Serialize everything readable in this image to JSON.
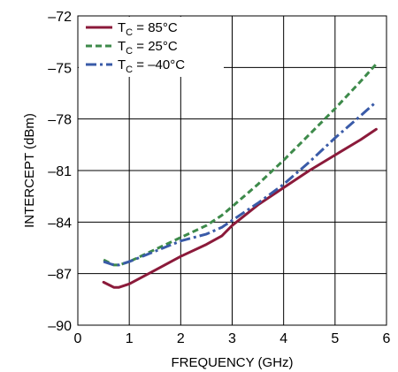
{
  "chart_data": {
    "type": "line",
    "title": "",
    "xlabel": "FREQUENCY (GHz)",
    "ylabel": "INTERCEPT (dBm)",
    "xlim": [
      0,
      6
    ],
    "ylim": [
      -90,
      -72
    ],
    "xticks": [
      "0",
      "1",
      "2",
      "3",
      "4",
      "5",
      "6"
    ],
    "yticks": [
      "–72",
      "–75",
      "–78",
      "–81",
      "–84",
      "–87",
      "–90"
    ],
    "grid": true,
    "legend_position": "top-left",
    "series": [
      {
        "name": "TC = 85°C",
        "color": "#8b1a3a",
        "dash": "solid",
        "x": [
          0.5,
          0.7,
          0.8,
          1.0,
          1.5,
          2.0,
          2.5,
          2.8,
          3.0,
          3.5,
          4.0,
          4.5,
          5.0,
          5.5,
          5.8
        ],
        "y": [
          -87.5,
          -87.8,
          -87.8,
          -87.6,
          -86.8,
          -86.0,
          -85.3,
          -84.8,
          -84.2,
          -83.0,
          -82.0,
          -81.0,
          -80.1,
          -79.2,
          -78.6
        ]
      },
      {
        "name": "TC = 25°C",
        "color": "#3d8a4a",
        "dash": "dashed",
        "x": [
          0.5,
          0.7,
          0.8,
          1.0,
          1.5,
          2.0,
          2.5,
          2.8,
          3.0,
          3.5,
          4.0,
          4.5,
          5.0,
          5.5,
          5.8
        ],
        "y": [
          -86.2,
          -86.5,
          -86.5,
          -86.3,
          -85.6,
          -84.9,
          -84.2,
          -83.6,
          -83.1,
          -81.8,
          -80.4,
          -78.9,
          -77.4,
          -75.8,
          -74.8
        ]
      },
      {
        "name": "TC = –40°C",
        "color": "#3a5ba8",
        "dash": "dashdot",
        "x": [
          0.5,
          0.7,
          0.8,
          1.0,
          1.5,
          2.0,
          2.5,
          2.8,
          3.0,
          3.5,
          4.0,
          4.5,
          5.0,
          5.5,
          5.8
        ],
        "y": [
          -86.3,
          -86.5,
          -86.5,
          -86.3,
          -85.7,
          -85.1,
          -84.7,
          -84.3,
          -83.9,
          -82.9,
          -81.8,
          -80.5,
          -79.1,
          -77.8,
          -77.0
        ]
      }
    ]
  },
  "legend": [
    {
      "t": "T",
      "sub": "C",
      "rest": " = 85°C"
    },
    {
      "t": "T",
      "sub": "C",
      "rest": " = 25°C"
    },
    {
      "t": "T",
      "sub": "C",
      "rest": " = –40°C"
    }
  ]
}
